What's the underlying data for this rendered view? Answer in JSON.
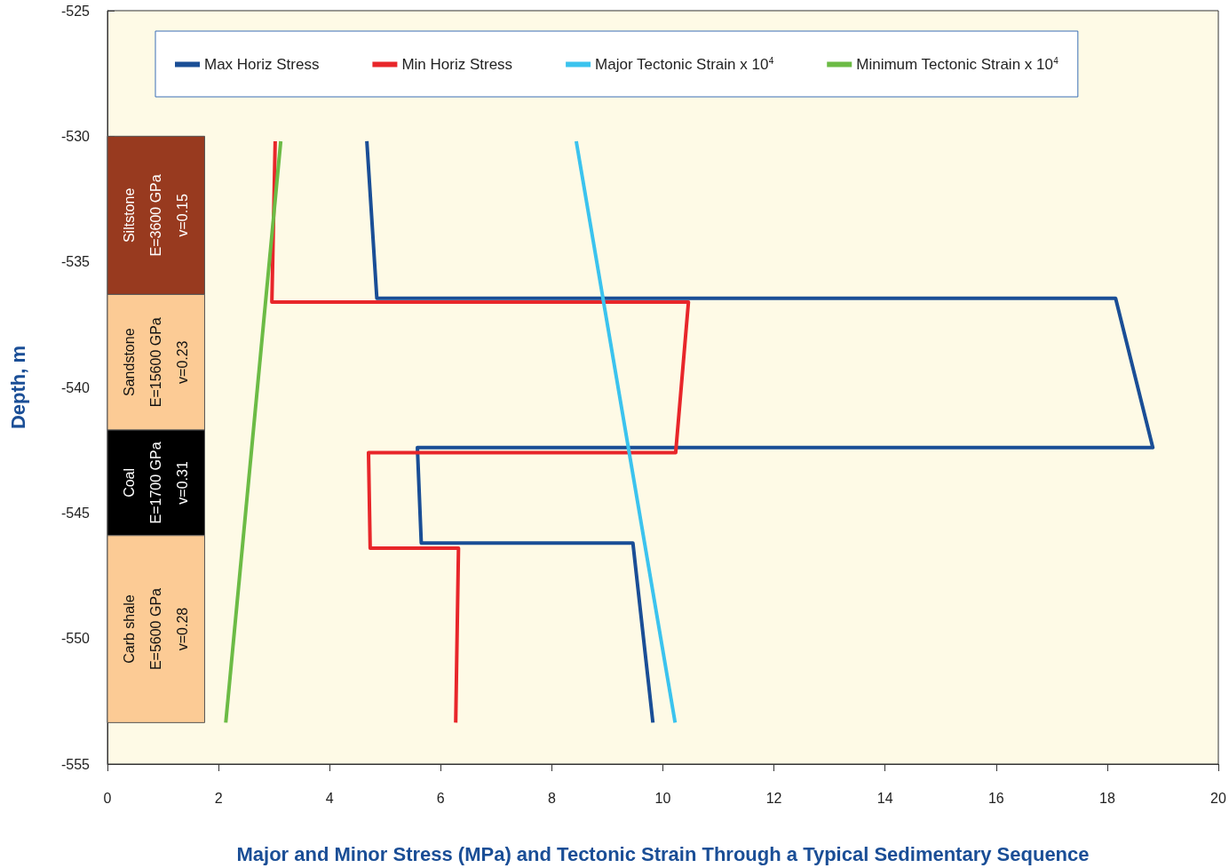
{
  "chart_data": {
    "type": "line",
    "xlabel": "Major and Minor Stress (MPa) and Tectonic Strain Through a Typical Sedimentary Sequence",
    "ylabel": "Depth, m",
    "xlim": [
      0,
      20
    ],
    "xticks": [
      0,
      2,
      4,
      6,
      8,
      10,
      12,
      14,
      16,
      18,
      20
    ],
    "ylim": [
      -555,
      -525
    ],
    "yticks": [
      -555,
      -550,
      -545,
      -540,
      -535,
      -530,
      -525
    ],
    "grid": false,
    "legend": "top",
    "marker": "none",
    "line_style": "solid",
    "series": [
      {
        "name": "Max Horiz Stress",
        "color": "#1a4e96",
        "x": [
          4.67,
          4.85,
          18.15,
          18.82,
          5.58,
          5.65,
          9.46,
          9.82
        ],
        "values": [
          -530.2,
          -536.45,
          -536.45,
          -542.4,
          -542.4,
          -546.2,
          -546.2,
          -553.35
        ]
      },
      {
        "name": "Min Horiz Stress",
        "color": "#e8262a",
        "x": [
          3.02,
          2.96,
          10.46,
          10.23,
          4.7,
          4.73,
          6.32,
          6.27
        ],
        "values": [
          -530.2,
          -536.6,
          -536.6,
          -542.6,
          -542.6,
          -546.4,
          -546.4,
          -553.35
        ]
      },
      {
        "name": "Major Tectonic Strain x 10$^{4}$",
        "color": "#3bc3ee",
        "x": [
          8.44,
          10.22
        ],
        "values": [
          -530.2,
          -553.35
        ]
      },
      {
        "name": "Minimum Tectonic Strain x 10$^{4}$",
        "color": "#6cbb45",
        "x": [
          3.12,
          2.13
        ],
        "values": [
          -530.2,
          -553.35
        ]
      }
    ],
    "bands": [
      {
        "axis": "y",
        "from": -536.3,
        "to": -530,
        "label": "Siltstone\nE=3600 GPa\nv=0.15",
        "color": "#983a1f"
      },
      {
        "axis": "y",
        "from": -541.7,
        "to": -536.3,
        "label": "Sandstone\nE=15600 GPa\nv=0.23",
        "color": "#fccb95"
      },
      {
        "axis": "y",
        "from": -545.9,
        "to": -541.7,
        "label": "Coal\nE=1700 GPa\nv=0.31",
        "color": "#000000"
      },
      {
        "axis": "y",
        "from": -553.35,
        "to": -545.9,
        "label": "Carb shale\nE=5600 GPa\nv=0.28",
        "color": "#fccb95"
      }
    ]
  }
}
